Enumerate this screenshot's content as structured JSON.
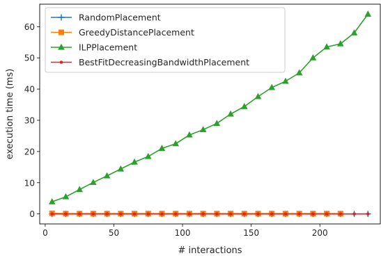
{
  "chart_data": {
    "type": "line",
    "xlabel": "# interactions",
    "ylabel": "execution time (ms)",
    "xlim": [
      -4,
      244
    ],
    "ylim": [
      -3.2,
      67.2
    ],
    "xticks": [
      0,
      50,
      100,
      150,
      200
    ],
    "yticks": [
      0,
      10,
      20,
      30,
      40,
      50,
      60
    ],
    "legend_position": "upper-left",
    "grid": false,
    "series": [
      {
        "name": "RandomPlacement",
        "color": "#1f77b4",
        "marker": "plus",
        "x": [
          5,
          15,
          25,
          35,
          45,
          55,
          65,
          75,
          85,
          95,
          105,
          115,
          125,
          135,
          145,
          155,
          165,
          175,
          185,
          195,
          205,
          215,
          225,
          235
        ],
        "y": [
          0,
          0,
          0,
          0,
          0,
          0,
          0,
          0,
          0,
          0,
          0,
          0,
          0,
          0,
          0,
          0,
          0,
          0,
          0,
          0,
          0,
          0,
          0,
          0
        ]
      },
      {
        "name": "GreedyDistancePlacement",
        "color": "#ff7f0e",
        "marker": "square",
        "x": [
          5,
          15,
          25,
          35,
          45,
          55,
          65,
          75,
          85,
          95,
          105,
          115,
          125,
          135,
          145,
          155,
          165,
          175,
          185,
          195,
          205,
          215
        ],
        "y": [
          0.2,
          0.1,
          0.1,
          0.1,
          0.1,
          0.1,
          0.1,
          0.1,
          0.1,
          0.1,
          0.1,
          0.1,
          0.1,
          0.1,
          0.1,
          0.1,
          0.1,
          0.1,
          0.1,
          0.1,
          0.1,
          0.1
        ]
      },
      {
        "name": "ILPPlacement",
        "color": "#2ca02c",
        "marker": "triangle",
        "x": [
          5,
          15,
          25,
          35,
          45,
          55,
          65,
          75,
          85,
          95,
          105,
          115,
          125,
          135,
          145,
          155,
          165,
          175,
          185,
          195,
          205,
          215,
          225,
          235
        ],
        "y": [
          3.9,
          5.5,
          7.8,
          10.1,
          12.2,
          14.4,
          16.6,
          18.4,
          21.0,
          22.5,
          25.3,
          27.0,
          29.0,
          32.0,
          34.4,
          37.6,
          40.5,
          42.5,
          45.2,
          50.0,
          53.5,
          54.5,
          58.0,
          64.0
        ]
      },
      {
        "name": "BestFitDecreasingBandwidthPlacement",
        "color": "#d62728",
        "marker": "dot",
        "x": [
          5,
          15,
          25,
          35,
          45,
          55,
          65,
          75,
          85,
          95,
          105,
          115,
          125,
          135,
          145,
          155,
          165,
          175,
          185,
          195,
          205,
          215,
          225,
          235
        ],
        "y": [
          0,
          0,
          0,
          0,
          0,
          0,
          0,
          0,
          0,
          0,
          0,
          0,
          0,
          0,
          0,
          0,
          0,
          0,
          0,
          0,
          0,
          0,
          0,
          0
        ]
      }
    ]
  }
}
